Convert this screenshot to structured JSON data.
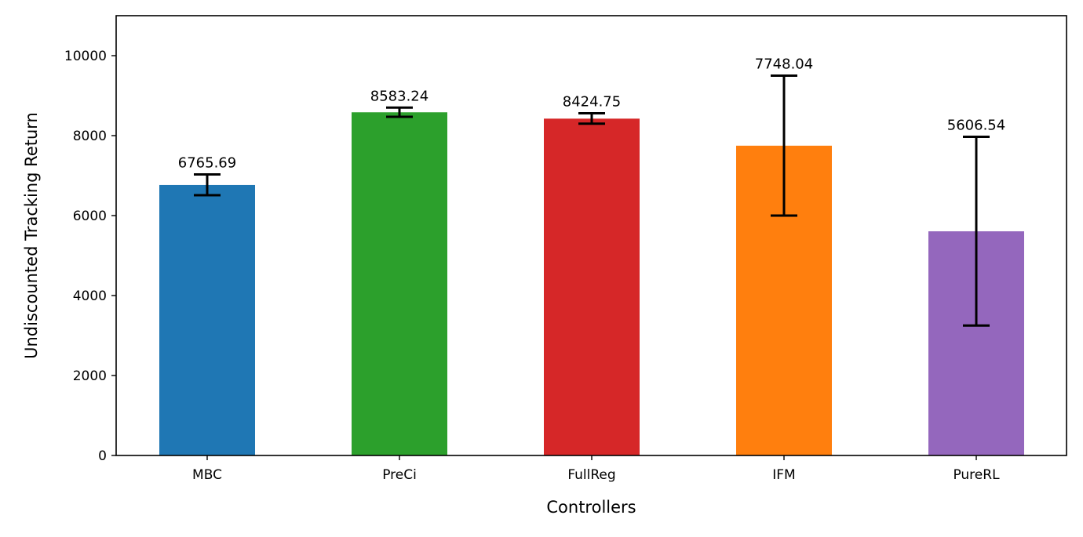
{
  "chart_data": {
    "type": "bar",
    "title": "",
    "xlabel": "Controllers",
    "ylabel": "Undiscounted Tracking Return",
    "categories": [
      "MBC",
      "PreCi",
      "FullReg",
      "IFM",
      "PureRL"
    ],
    "values": [
      6765.69,
      8583.24,
      8424.75,
      7748.04,
      5606.54
    ],
    "value_labels": [
      "6765.69",
      "8583.24",
      "8424.75",
      "7748.04",
      "5606.54"
    ],
    "error_low": [
      6510,
      8470,
      8300,
      6000,
      3250
    ],
    "error_high": [
      7030,
      8700,
      8560,
      9500,
      7970
    ],
    "colors": [
      "#1f77b4",
      "#2ca02c",
      "#d62728",
      "#ff7f0e",
      "#9467bd"
    ],
    "ylim": [
      0,
      11000
    ],
    "yticks": [
      0,
      2000,
      4000,
      6000,
      8000,
      10000
    ],
    "ytick_labels": [
      "0",
      "2000",
      "4000",
      "6000",
      "8000",
      "10000"
    ],
    "grid": false,
    "legend": "none"
  }
}
